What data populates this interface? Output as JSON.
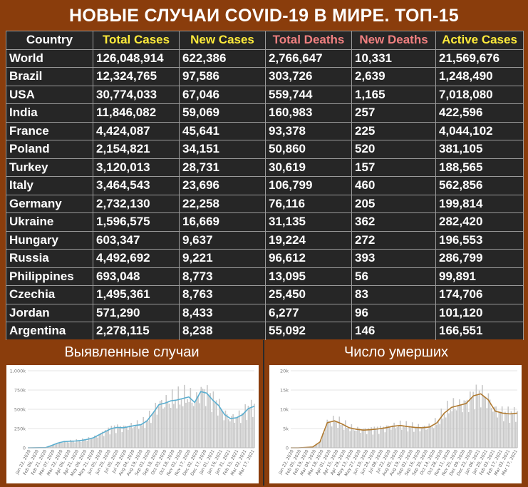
{
  "title": "НОВЫЕ СЛУЧАИ COVID-19 В МИРЕ. ТОП-15",
  "table": {
    "headers": [
      "Country",
      "Total Cases",
      "New Cases",
      "Total Deaths",
      "New Deaths",
      "Active Cases"
    ],
    "header_colors": [
      "#ffffff",
      "#ffeb3b",
      "#ffeb3b",
      "#f08080",
      "#f08080",
      "#ffeb3b"
    ],
    "rows": [
      [
        "World",
        "126,048,914",
        "622,386",
        "2,766,647",
        "10,331",
        "21,569,676"
      ],
      [
        "Brazil",
        "12,324,765",
        "97,586",
        "303,726",
        "2,639",
        "1,248,490"
      ],
      [
        "USA",
        "30,774,033",
        "67,046",
        "559,744",
        "1,165",
        "7,018,080"
      ],
      [
        "India",
        "11,846,082",
        "59,069",
        "160,983",
        "257",
        "422,596"
      ],
      [
        "France",
        "4,424,087",
        "45,641",
        "93,378",
        "225",
        "4,044,102"
      ],
      [
        "Poland",
        "2,154,821",
        "34,151",
        "50,860",
        "520",
        "381,105"
      ],
      [
        "Turkey",
        "3,120,013",
        "28,731",
        "30,619",
        "157",
        "188,565"
      ],
      [
        "Italy",
        "3,464,543",
        "23,696",
        "106,799",
        "460",
        "562,856"
      ],
      [
        "Germany",
        "2,732,130",
        "22,258",
        "76,116",
        "205",
        "199,814"
      ],
      [
        "Ukraine",
        "1,596,575",
        "16,669",
        "31,135",
        "362",
        "282,420"
      ],
      [
        "Hungary",
        "603,347",
        "9,637",
        "19,224",
        "272",
        "196,553"
      ],
      [
        "Russia",
        "4,492,692",
        "9,221",
        "96,612",
        "393",
        "286,799"
      ],
      [
        "Philippines",
        "693,048",
        "8,773",
        "13,095",
        "56",
        "99,891"
      ],
      [
        "Czechia",
        "1,495,361",
        "8,763",
        "25,450",
        "83",
        "174,706"
      ],
      [
        "Jordan",
        "571,290",
        "8,433",
        "6,277",
        "96",
        "101,120"
      ],
      [
        "Argentina",
        "2,278,115",
        "8,238",
        "55,092",
        "146",
        "166,551"
      ]
    ]
  },
  "chart_data": [
    {
      "type": "bar",
      "title": "Выявленные случаи",
      "overlay": "line",
      "bar_color": "#c8c8c8",
      "line_color": "#5aaed0",
      "ylim": [
        0,
        1000000
      ],
      "yticks": [
        "0",
        "250k",
        "500k",
        "750k",
        "1,000k"
      ],
      "ytick_values": [
        0,
        250000,
        500000,
        750000,
        1000000
      ],
      "x_tick_labels": [
        "Jan 22, 2020",
        "Feb 06, 2020",
        "Feb 21, 2020",
        "Mar 07, 2020",
        "Mar 22, 2020",
        "Apr 06, 2020",
        "Apr 21, 2020",
        "May 06, 2020",
        "May 21, 2020",
        "Jun 05, 2020",
        "Jun 20, 2020",
        "Jul 05, 2020",
        "Jul 20, 2020",
        "Aug 04, 2020",
        "Aug 19, 2020",
        "Sep 03, 2020",
        "Sep 18, 2020",
        "Oct 03, 2020",
        "Oct 18, 2020",
        "Nov 02, 2020",
        "Nov 17, 2020",
        "Dec 02, 2020",
        "Dec 17, 2020",
        "Jan 01, 2021",
        "Jan 16, 2021",
        "Jan 31, 2021",
        "Feb 15, 2021",
        "Mar 02, 2021",
        "Mar 17, 2021"
      ],
      "series": [
        {
          "values": [
            0,
            1000,
            2000,
            2000,
            30000,
            60000,
            80000,
            85000,
            88000,
            95000,
            110000,
            130000,
            170000,
            210000,
            250000,
            265000,
            260000,
            275000,
            290000,
            300000,
            350000,
            450000,
            560000,
            580000,
            610000,
            620000,
            640000,
            660000,
            590000,
            730000,
            710000,
            620000,
            550000,
            430000,
            380000,
            390000,
            430000,
            510000,
            540000
          ]
        }
      ]
    },
    {
      "type": "bar",
      "title": "Число умерших",
      "overlay": "line",
      "bar_color": "#c8c8c8",
      "line_color": "#b07a30",
      "ylim": [
        0,
        20000
      ],
      "yticks": [
        "0",
        "5k",
        "10k",
        "15k",
        "20k"
      ],
      "ytick_values": [
        0,
        5000,
        10000,
        15000,
        20000
      ],
      "x_tick_labels": [
        "Jan 22, 2020",
        "Feb 05, 2020",
        "Feb 19, 2020",
        "Mar 04, 2020",
        "Mar 18, 2020",
        "Apr 01, 2020",
        "Apr 15, 2020",
        "Apr 29, 2020",
        "May 13, 2020",
        "May 27, 2020",
        "Jun 10, 2020",
        "Jun 24, 2020",
        "Jul 08, 2020",
        "Jul 22, 2020",
        "Aug 05, 2020",
        "Aug 19, 2020",
        "Sep 02, 2020",
        "Sep 16, 2020",
        "Sep 30, 2020",
        "Oct 14, 2020",
        "Oct 28, 2020",
        "Nov 11, 2020",
        "Nov 25, 2020",
        "Dec 09, 2020",
        "Dec 23, 2020",
        "Jan 06, 2021",
        "Jan 20, 2021",
        "Feb 03, 2021",
        "Feb 17, 2021",
        "Mar 03, 2021",
        "Mar 17, 2021"
      ],
      "series": [
        {
          "values": [
            0,
            0,
            100,
            200,
            1500,
            6500,
            7000,
            6200,
            5200,
            4800,
            4600,
            4700,
            4900,
            5200,
            5600,
            5800,
            5500,
            5300,
            5200,
            5400,
            6500,
            9000,
            10500,
            11000,
            11500,
            13500,
            14000,
            12500,
            9500,
            9000,
            8800,
            9000
          ]
        }
      ]
    }
  ]
}
